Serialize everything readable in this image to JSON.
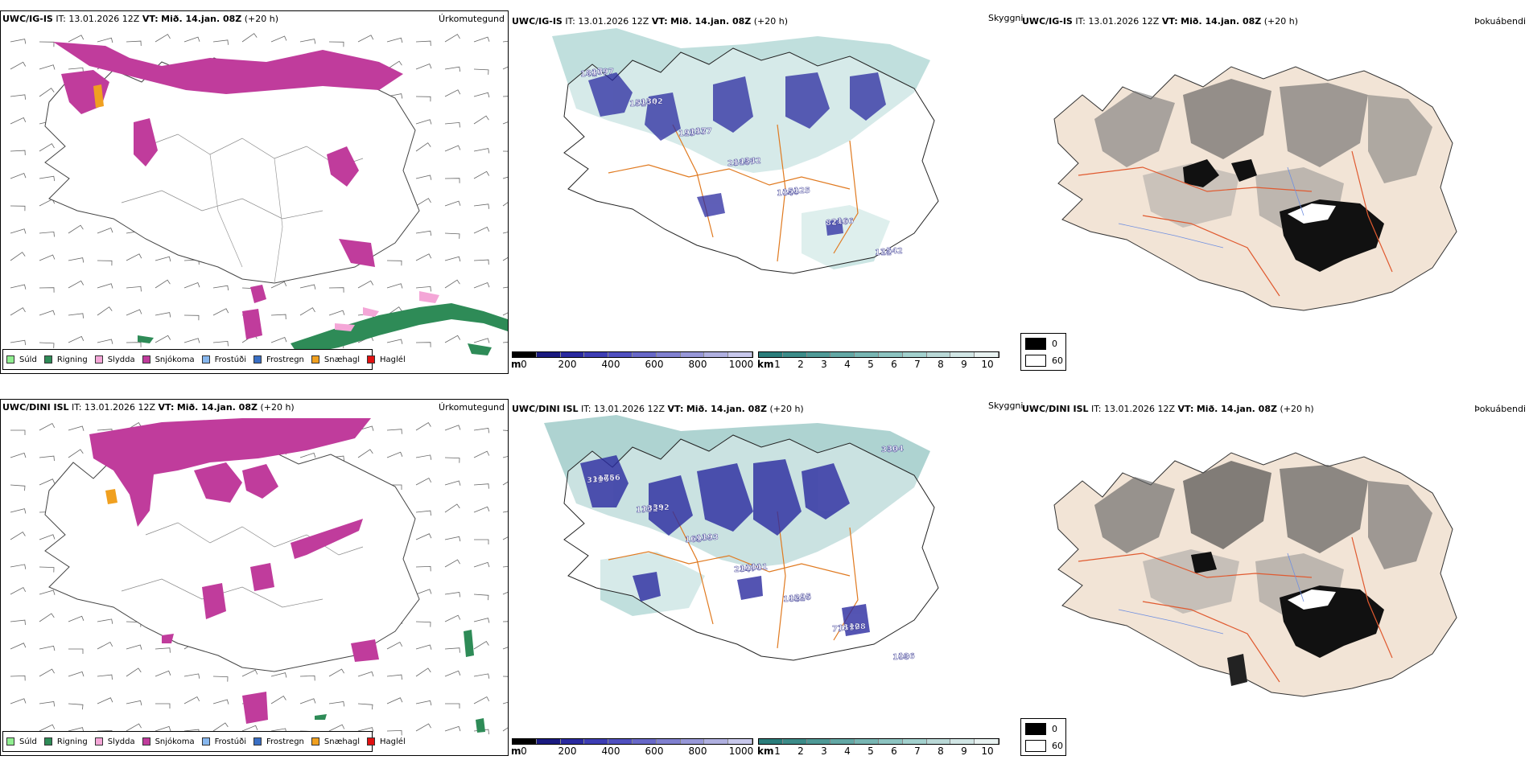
{
  "rows": [
    {
      "model": "UWC/IG-IS",
      "it_label": "IT:",
      "it_value": "13.01.2026 12Z",
      "vt_label": "VT:",
      "vt_value": "Mið. 14.jan. 08Z",
      "lead": "(+20 h)",
      "precip_label": "Úrkomutegund",
      "vis_label": "Skyggni",
      "fog_label": "Þokuábendi"
    },
    {
      "model": "UWC/DINI ISL",
      "it_label": "IT:",
      "it_value": "13.01.2026 12Z",
      "vt_label": "VT:",
      "vt_value": "Mið. 14.jan. 08Z",
      "lead": "(+20 h)",
      "precip_label": "Úrkomutegund",
      "vis_label": "Skyggni",
      "fog_label": "Þokuábendi"
    }
  ],
  "precip_legend": [
    {
      "label": "Súld",
      "color": "#90ee90"
    },
    {
      "label": "Rigning",
      "color": "#2e8b57"
    },
    {
      "label": "Slydda",
      "color": "#f4a6d7"
    },
    {
      "label": "Snjókoma",
      "color": "#c03c9c"
    },
    {
      "label": "Frostúði",
      "color": "#87b7ee"
    },
    {
      "label": "Frostregn",
      "color": "#3a6fc4"
    },
    {
      "label": "Snæhagl",
      "color": "#f0a020"
    },
    {
      "label": "Haglél",
      "color": "#e01010"
    }
  ],
  "elevation_bar": {
    "unit": "m",
    "ticks": [
      "0",
      "200",
      "400",
      "600",
      "800",
      "1000"
    ],
    "colors": [
      "#000000",
      "#1a1a80",
      "#2a2aa0",
      "#3d3db4",
      "#5050c0",
      "#6868c8",
      "#8080d0",
      "#9898d8",
      "#b0b0e0",
      "#c8c8ec"
    ]
  },
  "visibility_bar": {
    "unit": "km",
    "ticks": [
      "1",
      "2",
      "3",
      "4",
      "5",
      "6",
      "7",
      "8",
      "9",
      "10"
    ],
    "colors": [
      "#2a7d7b",
      "#3c8c89",
      "#4f9a97",
      "#63a8a5",
      "#78b6b3",
      "#8dc4c1",
      "#a3d1ce",
      "#bad9d7",
      "#d1e6e5",
      "#e8f2f1"
    ]
  },
  "fog_legend": [
    {
      "label": "0",
      "color": "#000000"
    },
    {
      "label": "60",
      "color": "#ffffff"
    }
  ],
  "peaks": {
    "row1": [
      "141",
      "151",
      "123",
      "25",
      "164",
      "81",
      "111",
      "86",
      "53",
      "97",
      "118",
      "156",
      "248",
      "28",
      "107",
      "154",
      "153",
      "457",
      "50",
      "166",
      "542",
      "797",
      "302",
      "177",
      "342",
      "125"
    ],
    "row2": [
      "333",
      "179",
      "188",
      "234",
      "108",
      "77",
      "355",
      "100",
      "102",
      "69",
      "107",
      "122",
      "158",
      "304",
      "176",
      "354",
      "130",
      "100",
      "226",
      "129",
      "108",
      "756",
      "392",
      "193",
      "111",
      "95",
      "128",
      "136"
    ]
  }
}
